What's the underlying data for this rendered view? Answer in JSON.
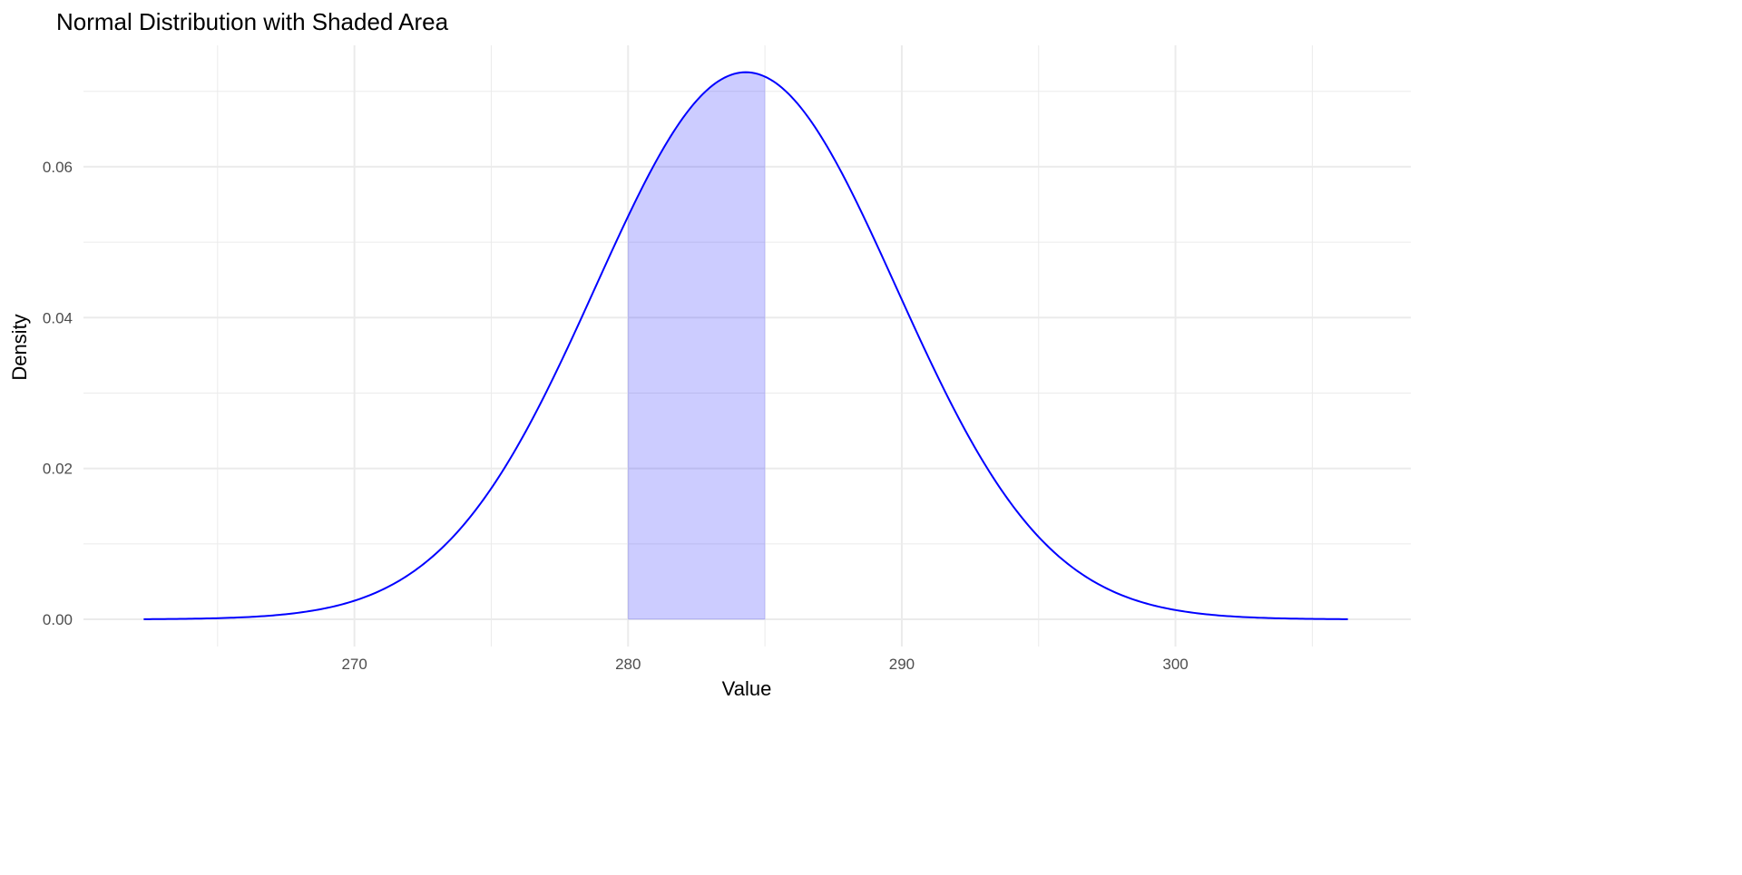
{
  "chart_data": {
    "type": "area",
    "title": "Normal Distribution with Shaded Area",
    "xlabel": "Value",
    "ylabel": "Density",
    "distribution": {
      "family": "normal",
      "mean": 284.3,
      "sd": 5.5
    },
    "curve_x_range": [
      262.3,
      306.3
    ],
    "shaded_interval": [
      280,
      285
    ],
    "xlim": [
      260.1,
      308.6
    ],
    "ylim": [
      -0.0036,
      0.0761
    ],
    "x_ticks": [
      270,
      280,
      290,
      300
    ],
    "x_tick_labels": [
      "270",
      "280",
      "290",
      "300"
    ],
    "y_ticks": [
      0,
      0.02,
      0.04,
      0.06
    ],
    "y_tick_labels": [
      "0.00",
      "0.02",
      "0.04",
      "0.06"
    ],
    "x_minor_ticks": [
      265,
      275,
      285,
      295,
      305
    ],
    "y_minor_ticks": [
      0.01,
      0.03,
      0.05,
      0.07
    ],
    "grid": true,
    "legend": "none",
    "colors": {
      "line": "#0000ff",
      "fill": "#0000ff",
      "fill_opacity": 0.2,
      "grid": "#ebebeb"
    }
  }
}
